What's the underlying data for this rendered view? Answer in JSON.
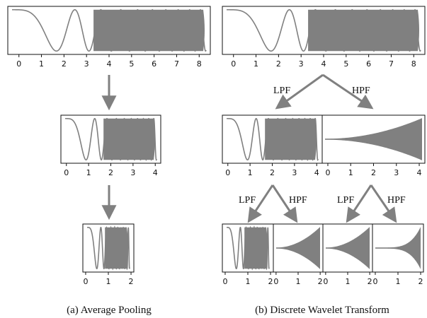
{
  "captions": {
    "left": "(a)  Average Pooling",
    "right": "(b)  Discrete Wavelet Transform"
  },
  "filters": {
    "low": "LPF",
    "high": "HPF"
  },
  "signal_color": "#808080",
  "arrow_color": "#808080",
  "panels": {
    "input": {
      "signal": "chirp",
      "ticks": [
        "0",
        "1",
        "2",
        "3",
        "4",
        "5",
        "6",
        "7",
        "8"
      ]
    },
    "pool1": {
      "signal": "chirp",
      "ticks": [
        "0",
        "1",
        "2",
        "3",
        "4"
      ]
    },
    "pool2": {
      "signal": "chirp",
      "ticks": [
        "0",
        "1",
        "2"
      ]
    },
    "dwt_in": {
      "signal": "chirp",
      "ticks": [
        "0",
        "1",
        "2",
        "3",
        "4",
        "5",
        "6",
        "7",
        "8"
      ]
    },
    "dwt_l1": {
      "signal": "chirp",
      "ticks": [
        "0",
        "1",
        "2",
        "3",
        "4"
      ]
    },
    "dwt_h1": {
      "signal": "detail",
      "ticks": [
        "0",
        "1",
        "2",
        "3",
        "4"
      ]
    },
    "dwt_ll": {
      "signal": "chirp",
      "ticks": [
        "0",
        "1",
        "2"
      ]
    },
    "dwt_lh": {
      "signal": "detail",
      "ticks": [
        "0",
        "1",
        "2"
      ]
    },
    "dwt_hl": {
      "signal": "detail",
      "ticks": [
        "0",
        "1",
        "2"
      ]
    },
    "dwt_hh": {
      "signal": "detail-late",
      "ticks": [
        "0",
        "1",
        "2"
      ]
    }
  }
}
